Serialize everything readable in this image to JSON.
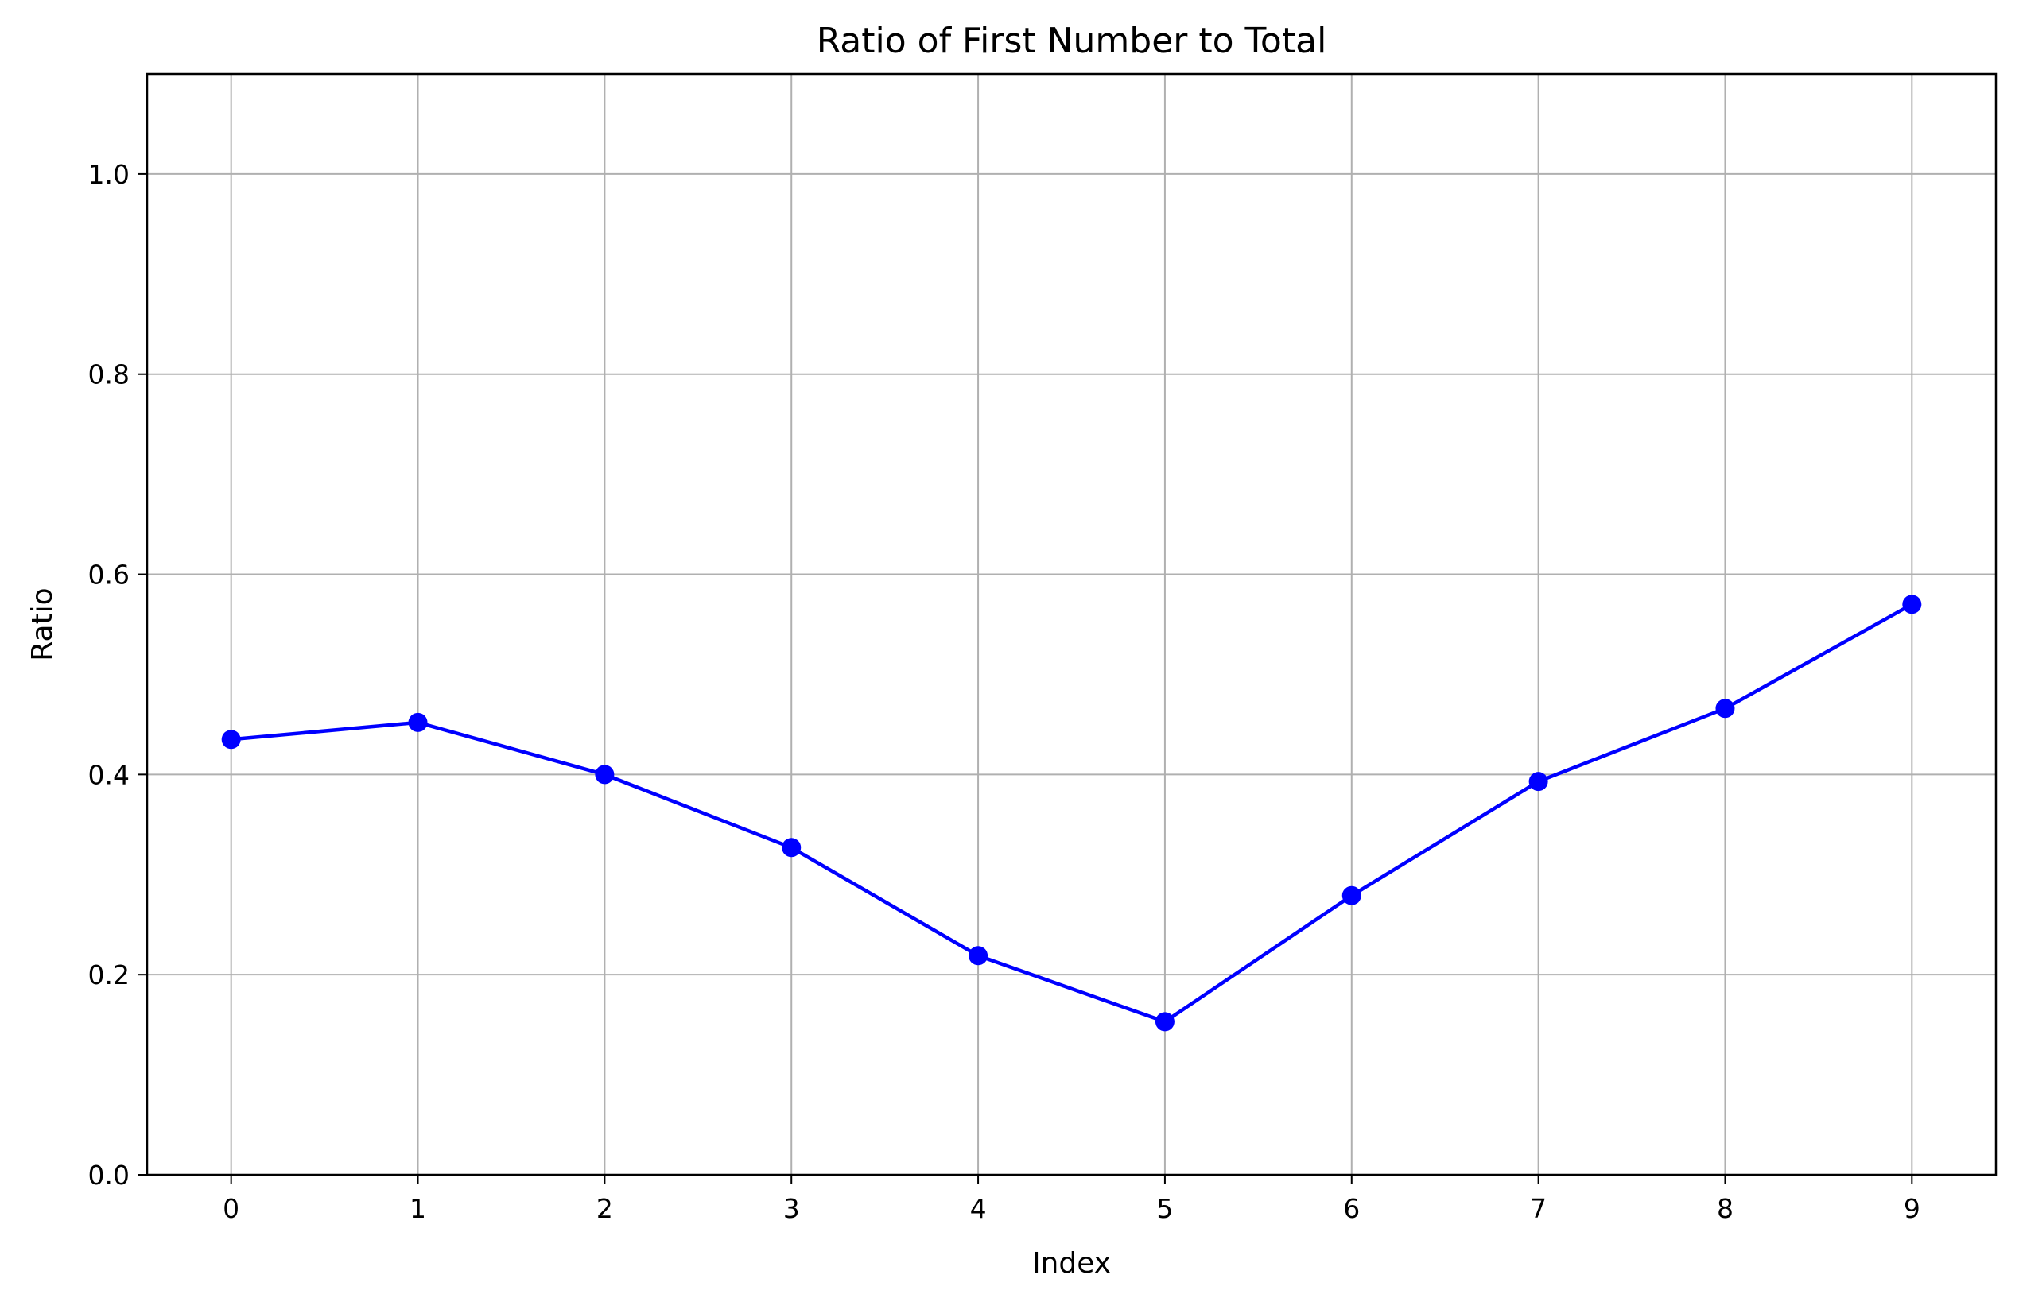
{
  "chart_data": {
    "type": "line",
    "title": "Ratio of First Number to Total",
    "xlabel": "Index",
    "ylabel": "Ratio",
    "xlim": [
      -0.45,
      9.45
    ],
    "ylim": [
      0.0,
      1.1
    ],
    "xticks": [
      0,
      1,
      2,
      3,
      4,
      5,
      6,
      7,
      8,
      9
    ],
    "yticks": [
      0.0,
      0.2,
      0.4,
      0.6,
      0.8,
      1.0
    ],
    "ytick_labels": [
      "0.0",
      "0.2",
      "0.4",
      "0.6",
      "0.8",
      "1.0"
    ],
    "grid": true,
    "series": [
      {
        "color": "#0000ff",
        "marker": "circle",
        "x": [
          0,
          1,
          2,
          3,
          4,
          5,
          6,
          7,
          8,
          9
        ],
        "values": [
          0.435,
          0.452,
          0.4,
          0.327,
          0.219,
          0.153,
          0.279,
          0.393,
          0.466,
          0.57
        ]
      }
    ]
  }
}
